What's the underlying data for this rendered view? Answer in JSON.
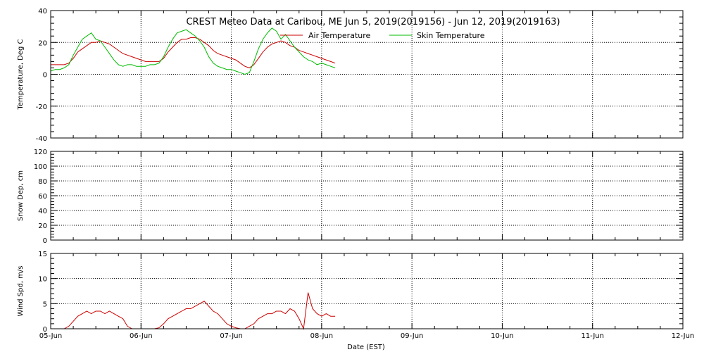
{
  "chart_data": [
    {
      "type": "line",
      "title": "CREST Meteo Data at Caribou, ME   Jun  5, 2019(2019156) - Jun 12, 2019(2019163)",
      "xlabel": "Date (EST)",
      "ylabel": "Temperature, Deg C",
      "ylim": [
        -40,
        40
      ],
      "yticks": [
        "-40",
        "-20",
        "0",
        "20",
        "40"
      ],
      "xlim_days": [
        0,
        7
      ],
      "xtick_labels": [
        "05-Jun",
        "06-Jun",
        "07-Jun",
        "08-Jun",
        "09-Jun",
        "10-Jun",
        "11-Jun",
        "12-Jun"
      ],
      "grid": true,
      "legend": "top-center",
      "series": [
        {
          "name": "Air Temperature",
          "color": "#cc0000",
          "points": [
            [
              0,
              6
            ],
            [
              0.05,
              6
            ],
            [
              0.1,
              6
            ],
            [
              0.15,
              6
            ],
            [
              0.2,
              7
            ],
            [
              0.25,
              10
            ],
            [
              0.3,
              14
            ],
            [
              0.35,
              16
            ],
            [
              0.4,
              18
            ],
            [
              0.45,
              20
            ],
            [
              0.5,
              20
            ],
            [
              0.55,
              21
            ],
            [
              0.6,
              20
            ],
            [
              0.65,
              19
            ],
            [
              0.7,
              17
            ],
            [
              0.75,
              15
            ],
            [
              0.8,
              13
            ],
            [
              0.85,
              12
            ],
            [
              0.9,
              11
            ],
            [
              0.95,
              10
            ],
            [
              1.0,
              9
            ],
            [
              1.05,
              8
            ],
            [
              1.1,
              8
            ],
            [
              1.15,
              8
            ],
            [
              1.2,
              8
            ],
            [
              1.25,
              10
            ],
            [
              1.3,
              14
            ],
            [
              1.35,
              17
            ],
            [
              1.4,
              20
            ],
            [
              1.45,
              22
            ],
            [
              1.5,
              22
            ],
            [
              1.55,
              23
            ],
            [
              1.6,
              23
            ],
            [
              1.65,
              22
            ],
            [
              1.7,
              20
            ],
            [
              1.75,
              18
            ],
            [
              1.8,
              15
            ],
            [
              1.85,
              13
            ],
            [
              1.9,
              12
            ],
            [
              1.95,
              11
            ],
            [
              2.0,
              10
            ],
            [
              2.05,
              9
            ],
            [
              2.1,
              7
            ],
            [
              2.15,
              5
            ],
            [
              2.2,
              4
            ],
            [
              2.25,
              6
            ],
            [
              2.3,
              10
            ],
            [
              2.35,
              14
            ],
            [
              2.4,
              17
            ],
            [
              2.45,
              19
            ],
            [
              2.5,
              20
            ],
            [
              2.55,
              21
            ],
            [
              2.6,
              20
            ],
            [
              2.65,
              18
            ],
            [
              2.7,
              17
            ],
            [
              2.75,
              15
            ],
            [
              2.8,
              14
            ],
            [
              2.85,
              13
            ],
            [
              2.9,
              12
            ],
            [
              2.95,
              11
            ],
            [
              3.0,
              10
            ],
            [
              3.05,
              9
            ],
            [
              3.1,
              8
            ],
            [
              3.15,
              7
            ]
          ]
        },
        {
          "name": "Skin Temperature",
          "color": "#00bb00",
          "points": [
            [
              0,
              2
            ],
            [
              0.05,
              3
            ],
            [
              0.1,
              3
            ],
            [
              0.15,
              4
            ],
            [
              0.2,
              6
            ],
            [
              0.25,
              12
            ],
            [
              0.3,
              17
            ],
            [
              0.35,
              22
            ],
            [
              0.4,
              24
            ],
            [
              0.45,
              26
            ],
            [
              0.5,
              22
            ],
            [
              0.55,
              21
            ],
            [
              0.6,
              17
            ],
            [
              0.65,
              13
            ],
            [
              0.7,
              9
            ],
            [
              0.75,
              6
            ],
            [
              0.8,
              5
            ],
            [
              0.85,
              6
            ],
            [
              0.9,
              6
            ],
            [
              0.95,
              5
            ],
            [
              1.0,
              5
            ],
            [
              1.05,
              5
            ],
            [
              1.1,
              6
            ],
            [
              1.15,
              6
            ],
            [
              1.2,
              7
            ],
            [
              1.25,
              11
            ],
            [
              1.3,
              17
            ],
            [
              1.35,
              22
            ],
            [
              1.4,
              26
            ],
            [
              1.45,
              27
            ],
            [
              1.5,
              28
            ],
            [
              1.55,
              26
            ],
            [
              1.6,
              24
            ],
            [
              1.65,
              21
            ],
            [
              1.7,
              17
            ],
            [
              1.75,
              11
            ],
            [
              1.8,
              7
            ],
            [
              1.85,
              5
            ],
            [
              1.9,
              4
            ],
            [
              1.95,
              3
            ],
            [
              2.0,
              3
            ],
            [
              2.05,
              2
            ],
            [
              2.1,
              1
            ],
            [
              2.15,
              0
            ],
            [
              2.2,
              1
            ],
            [
              2.25,
              8
            ],
            [
              2.3,
              16
            ],
            [
              2.35,
              22
            ],
            [
              2.4,
              26
            ],
            [
              2.45,
              29
            ],
            [
              2.5,
              27
            ],
            [
              2.55,
              22
            ],
            [
              2.6,
              25
            ],
            [
              2.65,
              21
            ],
            [
              2.7,
              17
            ],
            [
              2.75,
              14
            ],
            [
              2.8,
              11
            ],
            [
              2.85,
              9
            ],
            [
              2.9,
              8
            ],
            [
              2.95,
              6
            ],
            [
              3.0,
              7
            ],
            [
              3.05,
              6
            ],
            [
              3.1,
              5
            ],
            [
              3.15,
              4
            ]
          ]
        }
      ]
    },
    {
      "type": "line",
      "xlabel": "",
      "ylabel": "Snow Dep, cm",
      "ylim": [
        0,
        120
      ],
      "yticks": [
        "0",
        "20",
        "40",
        "60",
        "80",
        "100",
        "120"
      ],
      "xlim_days": [
        0,
        7
      ],
      "grid": true,
      "series": []
    },
    {
      "type": "line",
      "xlabel": "Date (EST)",
      "ylabel": "Wind Spd, m/s",
      "ylim": [
        0,
        15
      ],
      "yticks": [
        "0",
        "5",
        "10",
        "15"
      ],
      "xlim_days": [
        0,
        7
      ],
      "grid": true,
      "series": [
        {
          "color": "#cc0000",
          "points": [
            [
              0,
              0
            ],
            [
              0.05,
              0
            ],
            [
              0.1,
              0
            ],
            [
              0.15,
              0
            ],
            [
              0.2,
              0.5
            ],
            [
              0.25,
              1.5
            ],
            [
              0.3,
              2.5
            ],
            [
              0.35,
              3
            ],
            [
              0.4,
              3.5
            ],
            [
              0.45,
              3
            ],
            [
              0.5,
              3.5
            ],
            [
              0.55,
              3.5
            ],
            [
              0.6,
              3
            ],
            [
              0.65,
              3.5
            ],
            [
              0.7,
              3
            ],
            [
              0.75,
              2.5
            ],
            [
              0.8,
              2
            ],
            [
              0.85,
              0.5
            ],
            [
              0.9,
              0
            ],
            [
              0.95,
              0
            ],
            [
              1.0,
              0
            ],
            [
              1.05,
              0
            ],
            [
              1.1,
              0
            ],
            [
              1.15,
              0
            ],
            [
              1.2,
              0.2
            ],
            [
              1.25,
              1
            ],
            [
              1.3,
              2
            ],
            [
              1.35,
              2.5
            ],
            [
              1.4,
              3
            ],
            [
              1.45,
              3.5
            ],
            [
              1.5,
              4
            ],
            [
              1.55,
              4
            ],
            [
              1.6,
              4.5
            ],
            [
              1.65,
              5
            ],
            [
              1.7,
              5.5
            ],
            [
              1.75,
              4.5
            ],
            [
              1.8,
              3.5
            ],
            [
              1.85,
              3
            ],
            [
              1.9,
              2
            ],
            [
              1.95,
              1
            ],
            [
              2.0,
              0.5
            ],
            [
              2.05,
              0.2
            ],
            [
              2.1,
              0
            ],
            [
              2.15,
              0
            ],
            [
              2.2,
              0.5
            ],
            [
              2.25,
              1
            ],
            [
              2.3,
              2
            ],
            [
              2.35,
              2.5
            ],
            [
              2.4,
              3
            ],
            [
              2.45,
              3
            ],
            [
              2.5,
              3.5
            ],
            [
              2.55,
              3.5
            ],
            [
              2.6,
              3
            ],
            [
              2.65,
              4
            ],
            [
              2.7,
              3.5
            ],
            [
              2.75,
              2
            ],
            [
              2.8,
              0
            ],
            [
              2.85,
              7.2
            ],
            [
              2.9,
              4
            ],
            [
              2.95,
              3
            ],
            [
              3.0,
              2.5
            ],
            [
              3.05,
              3
            ],
            [
              3.1,
              2.5
            ],
            [
              3.15,
              2.5
            ]
          ]
        }
      ]
    }
  ]
}
